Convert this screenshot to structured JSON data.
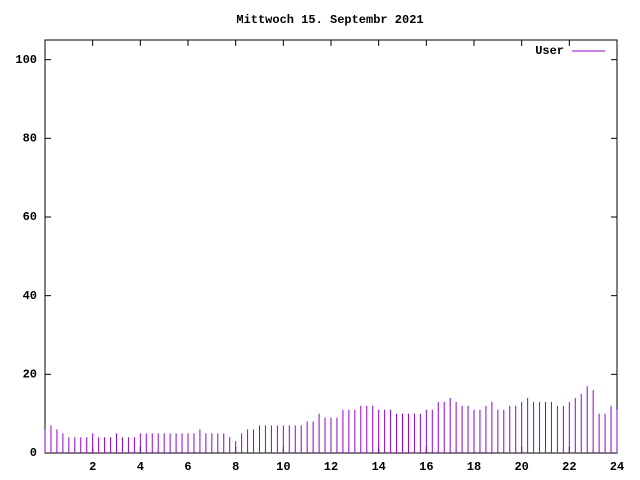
{
  "chart_data": {
    "type": "impulse",
    "title": "Mittwoch 15. Septembr 2021",
    "x": [
      0,
      0.25,
      0.5,
      0.75,
      1,
      1.25,
      1.5,
      1.75,
      2,
      2.25,
      2.5,
      2.75,
      3,
      3.25,
      3.5,
      3.75,
      4,
      4.25,
      4.5,
      4.75,
      5,
      5.25,
      5.5,
      5.75,
      6,
      6.25,
      6.5,
      6.75,
      7,
      7.25,
      7.5,
      7.75,
      8,
      8.25,
      8.5,
      8.75,
      9,
      9.25,
      9.5,
      9.75,
      10,
      10.25,
      10.5,
      10.75,
      11,
      11.25,
      11.5,
      11.75,
      12,
      12.25,
      12.5,
      12.75,
      13,
      13.25,
      13.5,
      13.75,
      14,
      14.25,
      14.5,
      14.75,
      15,
      15.25,
      15.5,
      15.75,
      16,
      16.25,
      16.5,
      16.75,
      17,
      17.25,
      17.5,
      17.75,
      18,
      18.25,
      18.5,
      18.75,
      19,
      19.25,
      19.5,
      19.75,
      20,
      20.25,
      20.5,
      20.75,
      21,
      21.25,
      21.5,
      21.75,
      22,
      22.25,
      22.5,
      22.75,
      23,
      23.25,
      23.5,
      23.75,
      24
    ],
    "series": [
      {
        "name": "User",
        "color": "#9400d3",
        "values": [
          6,
          7,
          6,
          5,
          4,
          4,
          4,
          4,
          5,
          4,
          4,
          4,
          5,
          4,
          4,
          4,
          5,
          5,
          5,
          5,
          5,
          5,
          5,
          5,
          5,
          5,
          6,
          5,
          5,
          5,
          5,
          4,
          3,
          5,
          6,
          6,
          7,
          7,
          7,
          7,
          7,
          7,
          7,
          7,
          8,
          8,
          10,
          9,
          9,
          9,
          11,
          11,
          11,
          12,
          12,
          12,
          11,
          11,
          11,
          10,
          10,
          10,
          10,
          10,
          11,
          11,
          13,
          13,
          14,
          13,
          12,
          12,
          11,
          11,
          12,
          13,
          11,
          11,
          12,
          12,
          13,
          14,
          13,
          13,
          13,
          13,
          12,
          12,
          13,
          14,
          15,
          17,
          16,
          10,
          10,
          12,
          11
        ]
      }
    ],
    "xlim": [
      0,
      24
    ],
    "xticks": [
      2,
      4,
      6,
      8,
      10,
      12,
      14,
      16,
      18,
      20,
      22,
      24
    ],
    "ylim": [
      0,
      105
    ],
    "yticks": [
      0,
      20,
      40,
      60,
      80,
      100
    ],
    "legend": "top-right"
  }
}
